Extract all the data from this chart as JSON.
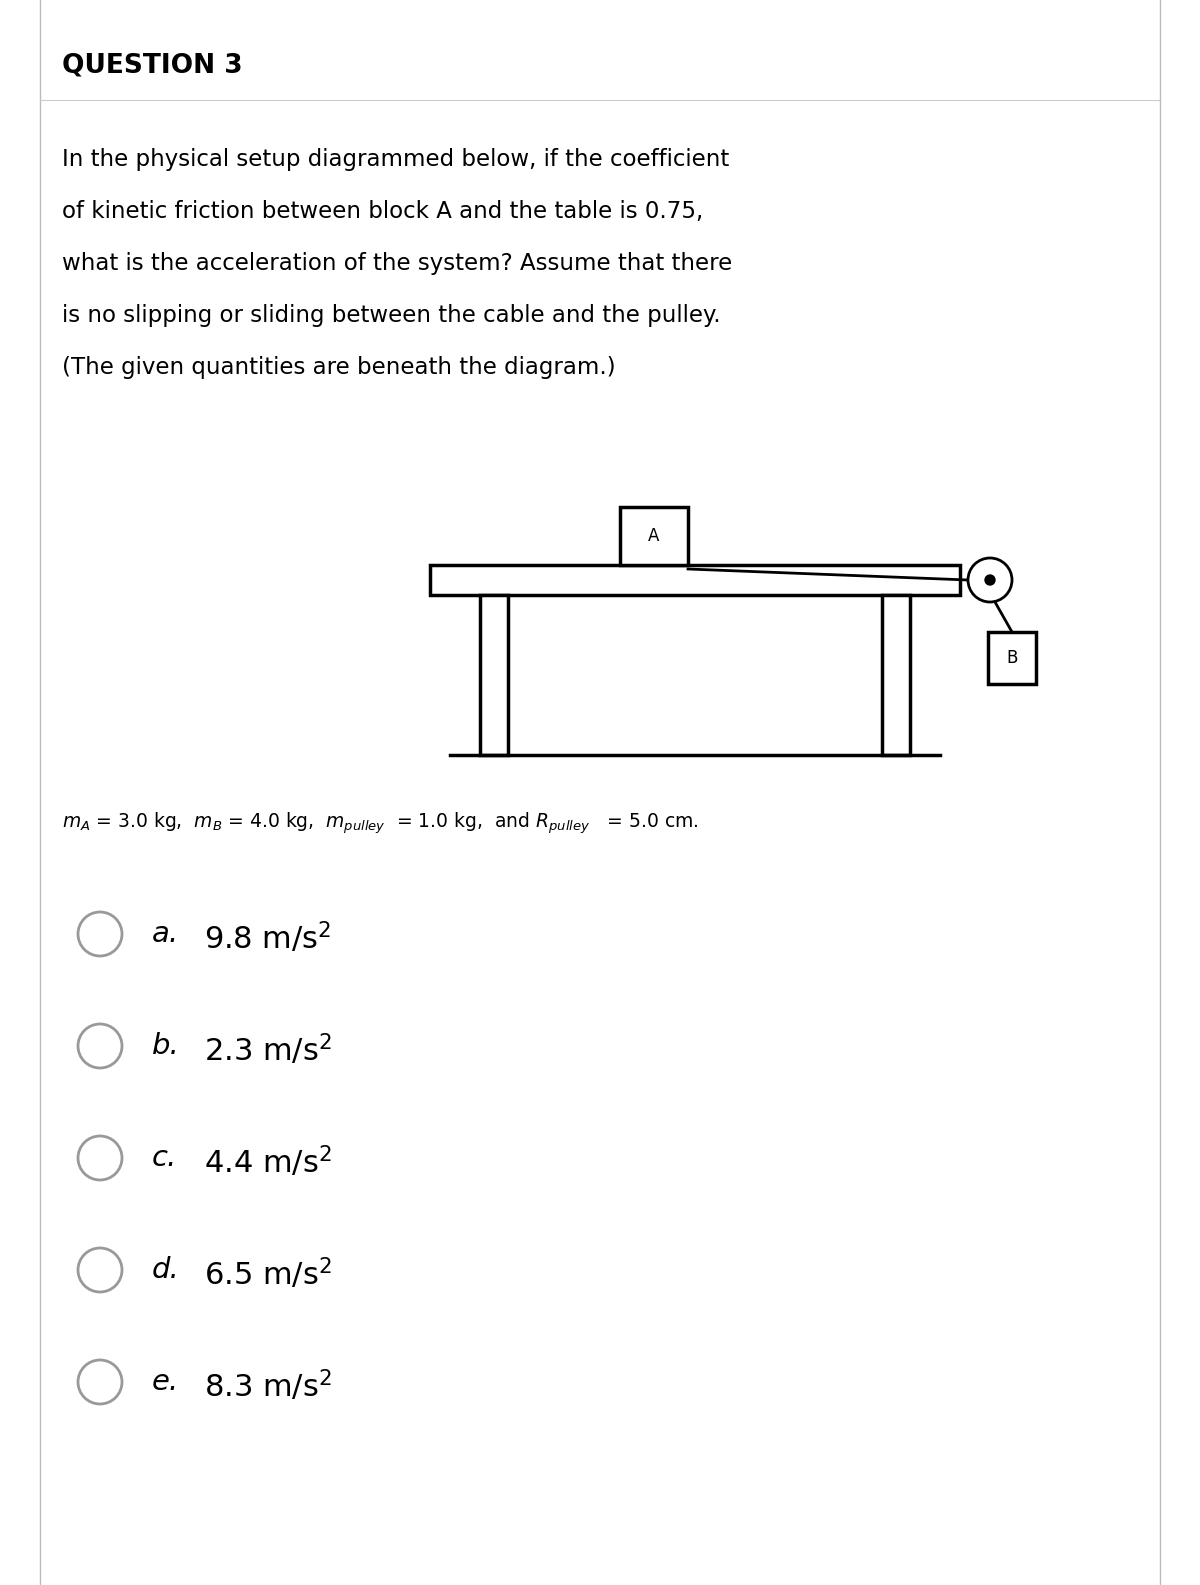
{
  "title": "QUESTION 3",
  "question_lines": [
    "In the physical setup diagrammed below, if the coefficient",
    "of kinetic friction between block A and the table is 0.75,",
    "what is the acceleration of the system? Assume that there",
    "is no slipping or sliding between the cable and the pulley.",
    "(The given quantities are beneath the diagram.)"
  ],
  "bg_color": "#ffffff",
  "text_color": "#000000",
  "border_color": "#aaaaaa",
  "choices": [
    {
      "letter": "a.",
      "value": "9.8 m/s"
    },
    {
      "letter": "b.",
      "value": "2.3 m/s"
    },
    {
      "letter": "c.",
      "value": "4.4 m/s"
    },
    {
      "letter": "d.",
      "value": "6.5 m/s"
    },
    {
      "letter": "e.",
      "value": "8.3 m/s"
    }
  ]
}
